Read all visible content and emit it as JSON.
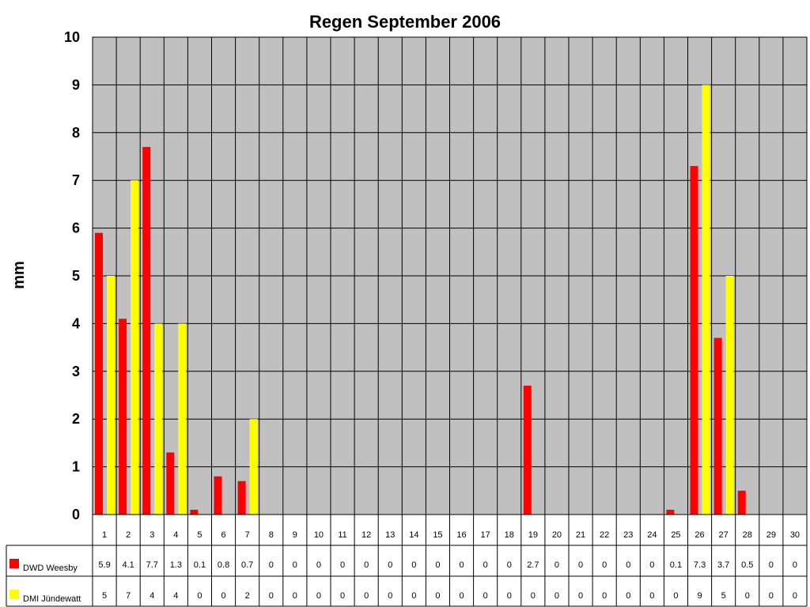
{
  "chart_data": {
    "type": "bar",
    "title": "Regen September 2006",
    "xlabel": "",
    "ylabel": "mm",
    "ylim": [
      0,
      10
    ],
    "yticks": [
      0,
      1,
      2,
      3,
      4,
      5,
      6,
      7,
      8,
      9,
      10
    ],
    "grid": true,
    "legend_position": "bottom-left (data table)",
    "categories": [
      "1",
      "2",
      "3",
      "4",
      "5",
      "6",
      "7",
      "8",
      "9",
      "10",
      "11",
      "12",
      "13",
      "14",
      "15",
      "16",
      "17",
      "18",
      "19",
      "20",
      "21",
      "22",
      "23",
      "24",
      "25",
      "26",
      "27",
      "28",
      "29",
      "30"
    ],
    "series": [
      {
        "name": "DWD Weesby",
        "color": "#ff0000",
        "values": [
          5.9,
          4.1,
          7.7,
          1.3,
          0.1,
          0.8,
          0.7,
          0,
          0,
          0,
          0,
          0,
          0,
          0,
          0,
          0,
          0,
          0,
          2.7,
          0,
          0,
          0,
          0,
          0,
          0.1,
          7.3,
          3.7,
          0.5,
          0,
          0
        ]
      },
      {
        "name": "DMI Jündewatt",
        "color": "#ffff00",
        "values": [
          5,
          7,
          4,
          4,
          0,
          0,
          2,
          0,
          0,
          0,
          0,
          0,
          0,
          0,
          0,
          0,
          0,
          0,
          0,
          0,
          0,
          0,
          0,
          0,
          0,
          9,
          5,
          0,
          0,
          0
        ]
      }
    ],
    "plot_background": "#c0c0c0"
  }
}
